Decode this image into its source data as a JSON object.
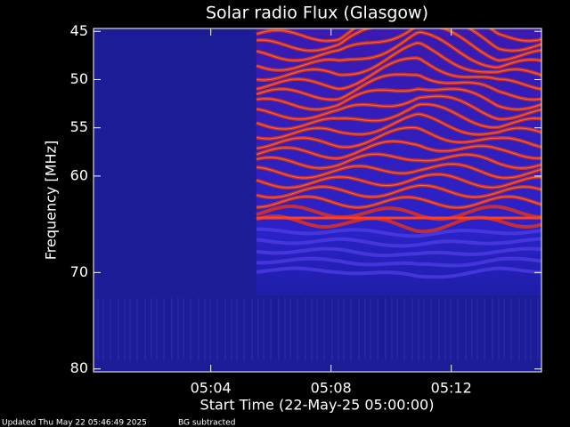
{
  "chart_data": {
    "type": "spectrogram",
    "title": "Solar radio Flux (Glasgow)",
    "y_label": "Frequency [MHz]",
    "x_label": "Start Time (22-May-25 05:00:00)",
    "ylim": [
      44.7,
      80.3
    ],
    "yticks": [
      45,
      50,
      55,
      60,
      70,
      80
    ],
    "xlim": [
      0.1,
      15
    ],
    "xticks": [
      {
        "value": 4,
        "label": "05:04"
      },
      {
        "value": 8,
        "label": "05:08"
      },
      {
        "value": 12,
        "label": "05:12"
      }
    ],
    "footer": [
      "Updated Thu May 22 05:46:49 2025",
      "BG subtracted"
    ]
  }
}
